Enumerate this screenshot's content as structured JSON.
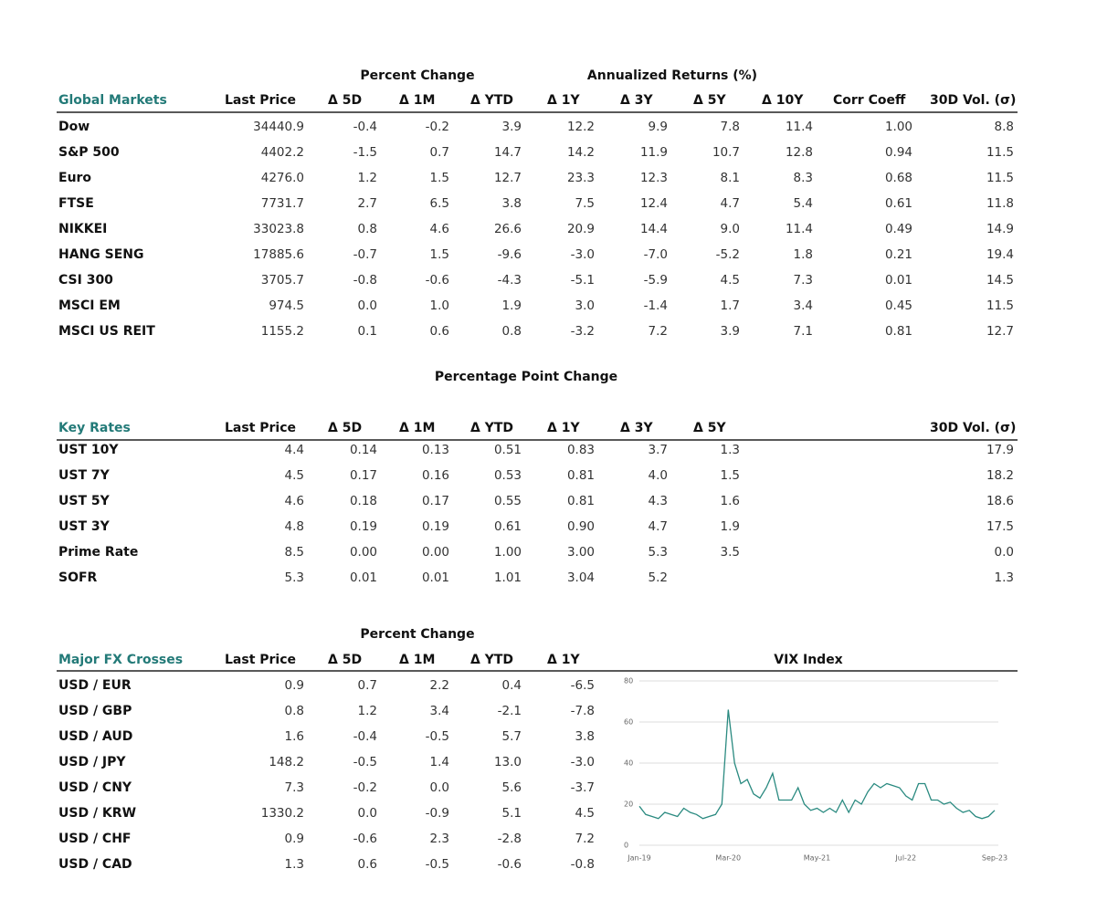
{
  "global_markets": {
    "group_headers": [
      "Percent Change",
      "Annualized Returns (%)"
    ],
    "headers": [
      "Global Markets",
      "Last Price",
      "Δ 5D",
      "Δ 1M",
      "Δ YTD",
      "Δ 1Y",
      "Δ 3Y",
      "Δ 5Y",
      "Δ 10Y",
      "Corr Coeff",
      "30D Vol. (σ)"
    ],
    "rows": [
      [
        "Dow",
        "34440.9",
        "-0.4",
        "-0.2",
        "3.9",
        "12.2",
        "9.9",
        "7.8",
        "11.4",
        "1.00",
        "8.8"
      ],
      [
        "S&P 500",
        "4402.2",
        "-1.5",
        "0.7",
        "14.7",
        "14.2",
        "11.9",
        "10.7",
        "12.8",
        "0.94",
        "11.5"
      ],
      [
        "Euro",
        "4276.0",
        "1.2",
        "1.5",
        "12.7",
        "23.3",
        "12.3",
        "8.1",
        "8.3",
        "0.68",
        "11.5"
      ],
      [
        "FTSE",
        "7731.7",
        "2.7",
        "6.5",
        "3.8",
        "7.5",
        "12.4",
        "4.7",
        "5.4",
        "0.61",
        "11.8"
      ],
      [
        "NIKKEI",
        "33023.8",
        "0.8",
        "4.6",
        "26.6",
        "20.9",
        "14.4",
        "9.0",
        "11.4",
        "0.49",
        "14.9"
      ],
      [
        "HANG SENG",
        "17885.6",
        "-0.7",
        "1.5",
        "-9.6",
        "-3.0",
        "-7.0",
        "-5.2",
        "1.8",
        "0.21",
        "19.4"
      ],
      [
        "CSI 300",
        "3705.7",
        "-0.8",
        "-0.6",
        "-4.3",
        "-5.1",
        "-5.9",
        "4.5",
        "7.3",
        "0.01",
        "14.5"
      ],
      [
        "MSCI EM",
        "974.5",
        "0.0",
        "1.0",
        "1.9",
        "3.0",
        "-1.4",
        "1.7",
        "3.4",
        "0.45",
        "11.5"
      ],
      [
        "MSCI US REIT",
        "1155.2",
        "0.1",
        "0.6",
        "0.8",
        "-3.2",
        "7.2",
        "3.9",
        "7.1",
        "0.81",
        "12.7"
      ]
    ]
  },
  "key_rates": {
    "group_headers": [
      "Percentage Point Change"
    ],
    "headers": [
      "Key Rates",
      "Last Price",
      "Δ 5D",
      "Δ 1M",
      "Δ YTD",
      "Δ 1Y",
      "Δ 3Y",
      "Δ 5Y",
      "30D Vol. (σ)"
    ],
    "rows": [
      [
        "UST 10Y",
        "4.4",
        "0.14",
        "0.13",
        "0.51",
        "0.83",
        "3.7",
        "1.3",
        "17.9"
      ],
      [
        "UST 7Y",
        "4.5",
        "0.17",
        "0.16",
        "0.53",
        "0.81",
        "4.0",
        "1.5",
        "18.2"
      ],
      [
        "UST 5Y",
        "4.6",
        "0.18",
        "0.17",
        "0.55",
        "0.81",
        "4.3",
        "1.6",
        "18.6"
      ],
      [
        "UST 3Y",
        "4.8",
        "0.19",
        "0.19",
        "0.61",
        "0.90",
        "4.7",
        "1.9",
        "17.5"
      ],
      [
        "Prime Rate",
        "8.5",
        "0.00",
        "0.00",
        "1.00",
        "3.00",
        "5.3",
        "3.5",
        "0.0"
      ],
      [
        "SOFR",
        "5.3",
        "0.01",
        "0.01",
        "1.01",
        "3.04",
        "5.2",
        null,
        "1.3"
      ]
    ]
  },
  "fx_crosses": {
    "group_headers": [
      "Percent Change"
    ],
    "headers": [
      "Major FX Crosses",
      "Last Price",
      "Δ 5D",
      "Δ 1M",
      "Δ YTD",
      "Δ 1Y"
    ],
    "rows": [
      [
        "USD / EUR",
        "0.9",
        "0.7",
        "2.2",
        "0.4",
        "-6.5"
      ],
      [
        "USD / GBP",
        "0.8",
        "1.2",
        "3.4",
        "-2.1",
        "-7.8"
      ],
      [
        "USD / AUD",
        "1.6",
        "-0.4",
        "-0.5",
        "5.7",
        "3.8"
      ],
      [
        "USD / JPY",
        "148.2",
        "-0.5",
        "1.4",
        "13.0",
        "-3.0"
      ],
      [
        "USD / CNY",
        "7.3",
        "-0.2",
        "0.0",
        "5.6",
        "-3.7"
      ],
      [
        "USD / KRW",
        "1330.2",
        "0.0",
        "-0.9",
        "5.1",
        "4.5"
      ],
      [
        "USD / CHF",
        "0.9",
        "-0.6",
        "2.3",
        "-2.8",
        "7.2"
      ],
      [
        "USD / CAD",
        "1.3",
        "0.6",
        "-0.5",
        "-0.6",
        "-0.8"
      ]
    ]
  },
  "chart_data": {
    "type": "line",
    "title": "VIX Index",
    "categories": [
      "Jan-19",
      null,
      null,
      null,
      null,
      null,
      null,
      null,
      null,
      null,
      null,
      null,
      null,
      null,
      "Mar-20",
      null,
      null,
      null,
      null,
      null,
      null,
      null,
      null,
      null,
      null,
      null,
      null,
      null,
      "May-21",
      null,
      null,
      null,
      null,
      null,
      null,
      null,
      null,
      null,
      null,
      null,
      null,
      null,
      "Jul-22",
      null,
      null,
      null,
      null,
      null,
      null,
      null,
      null,
      null,
      null,
      null,
      null,
      null,
      "Sep-23"
    ],
    "values": [
      19,
      15,
      14,
      13,
      16,
      15,
      14,
      18,
      16,
      15,
      13,
      14,
      15,
      20,
      66,
      40,
      30,
      32,
      25,
      23,
      28,
      35,
      22,
      22,
      22,
      28,
      20,
      17,
      18,
      16,
      18,
      16,
      22,
      16,
      22,
      20,
      26,
      30,
      28,
      30,
      29,
      28,
      24,
      22,
      30,
      30,
      22,
      22,
      20,
      21,
      18,
      16,
      17,
      14,
      13,
      14,
      17
    ],
    "color": "#2a8a80",
    "ylim": [
      0,
      80
    ],
    "yticks": [
      0,
      20,
      40,
      60,
      80
    ],
    "grid": true
  }
}
